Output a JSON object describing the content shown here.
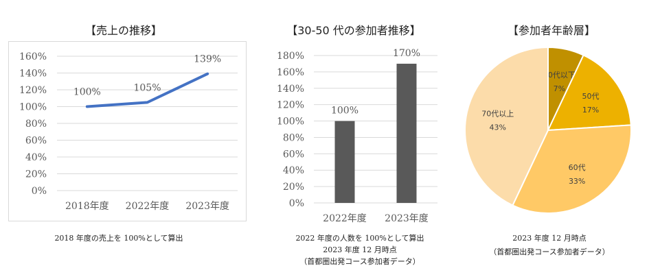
{
  "chart_data": [
    {
      "type": "line",
      "title": "【売上の推移】",
      "categories": [
        "2018年度",
        "2022年度",
        "2023年度"
      ],
      "values": [
        100,
        105,
        139
      ],
      "data_labels": [
        "100%",
        "105%",
        "139%"
      ],
      "ylim": [
        0,
        160
      ],
      "yticks": [
        "0%",
        "20%",
        "40%",
        "60%",
        "80%",
        "100%",
        "120%",
        "140%",
        "160%"
      ],
      "grid": true,
      "color": "#4472C4",
      "notes": [
        "2018 年度の売上を 100%として算出"
      ]
    },
    {
      "type": "bar",
      "title": "【30-50 代の参加者推移】",
      "categories": [
        "2022年度",
        "2023年度"
      ],
      "values": [
        100,
        170
      ],
      "data_labels": [
        "100%",
        "170%"
      ],
      "ylim": [
        0,
        180
      ],
      "yticks": [
        "0%",
        "20%",
        "40%",
        "60%",
        "80%",
        "100%",
        "120%",
        "140%",
        "160%",
        "180%"
      ],
      "grid": true,
      "color": "#595959",
      "notes": [
        "2022 年度の人数を 100%として算出",
        "2023 年度 12 月時点",
        "（首都圏出発コース参加者データ）"
      ]
    },
    {
      "type": "pie",
      "title": "【参加者年齢層】",
      "slices": [
        {
          "label": "40代以下",
          "value": 7,
          "value_label": "7%",
          "color": "#C09000"
        },
        {
          "label": "50代",
          "value": 17,
          "value_label": "17%",
          "color": "#EDB100"
        },
        {
          "label": "60代",
          "value": 33,
          "value_label": "33%",
          "color": "#FFC966"
        },
        {
          "label": "70代以上",
          "value": 43,
          "value_label": "43%",
          "color": "#FCDCAA"
        }
      ],
      "notes": [
        "2023 年度 12 月時点",
        "（首都圏出発コース参加者データ）"
      ]
    }
  ]
}
